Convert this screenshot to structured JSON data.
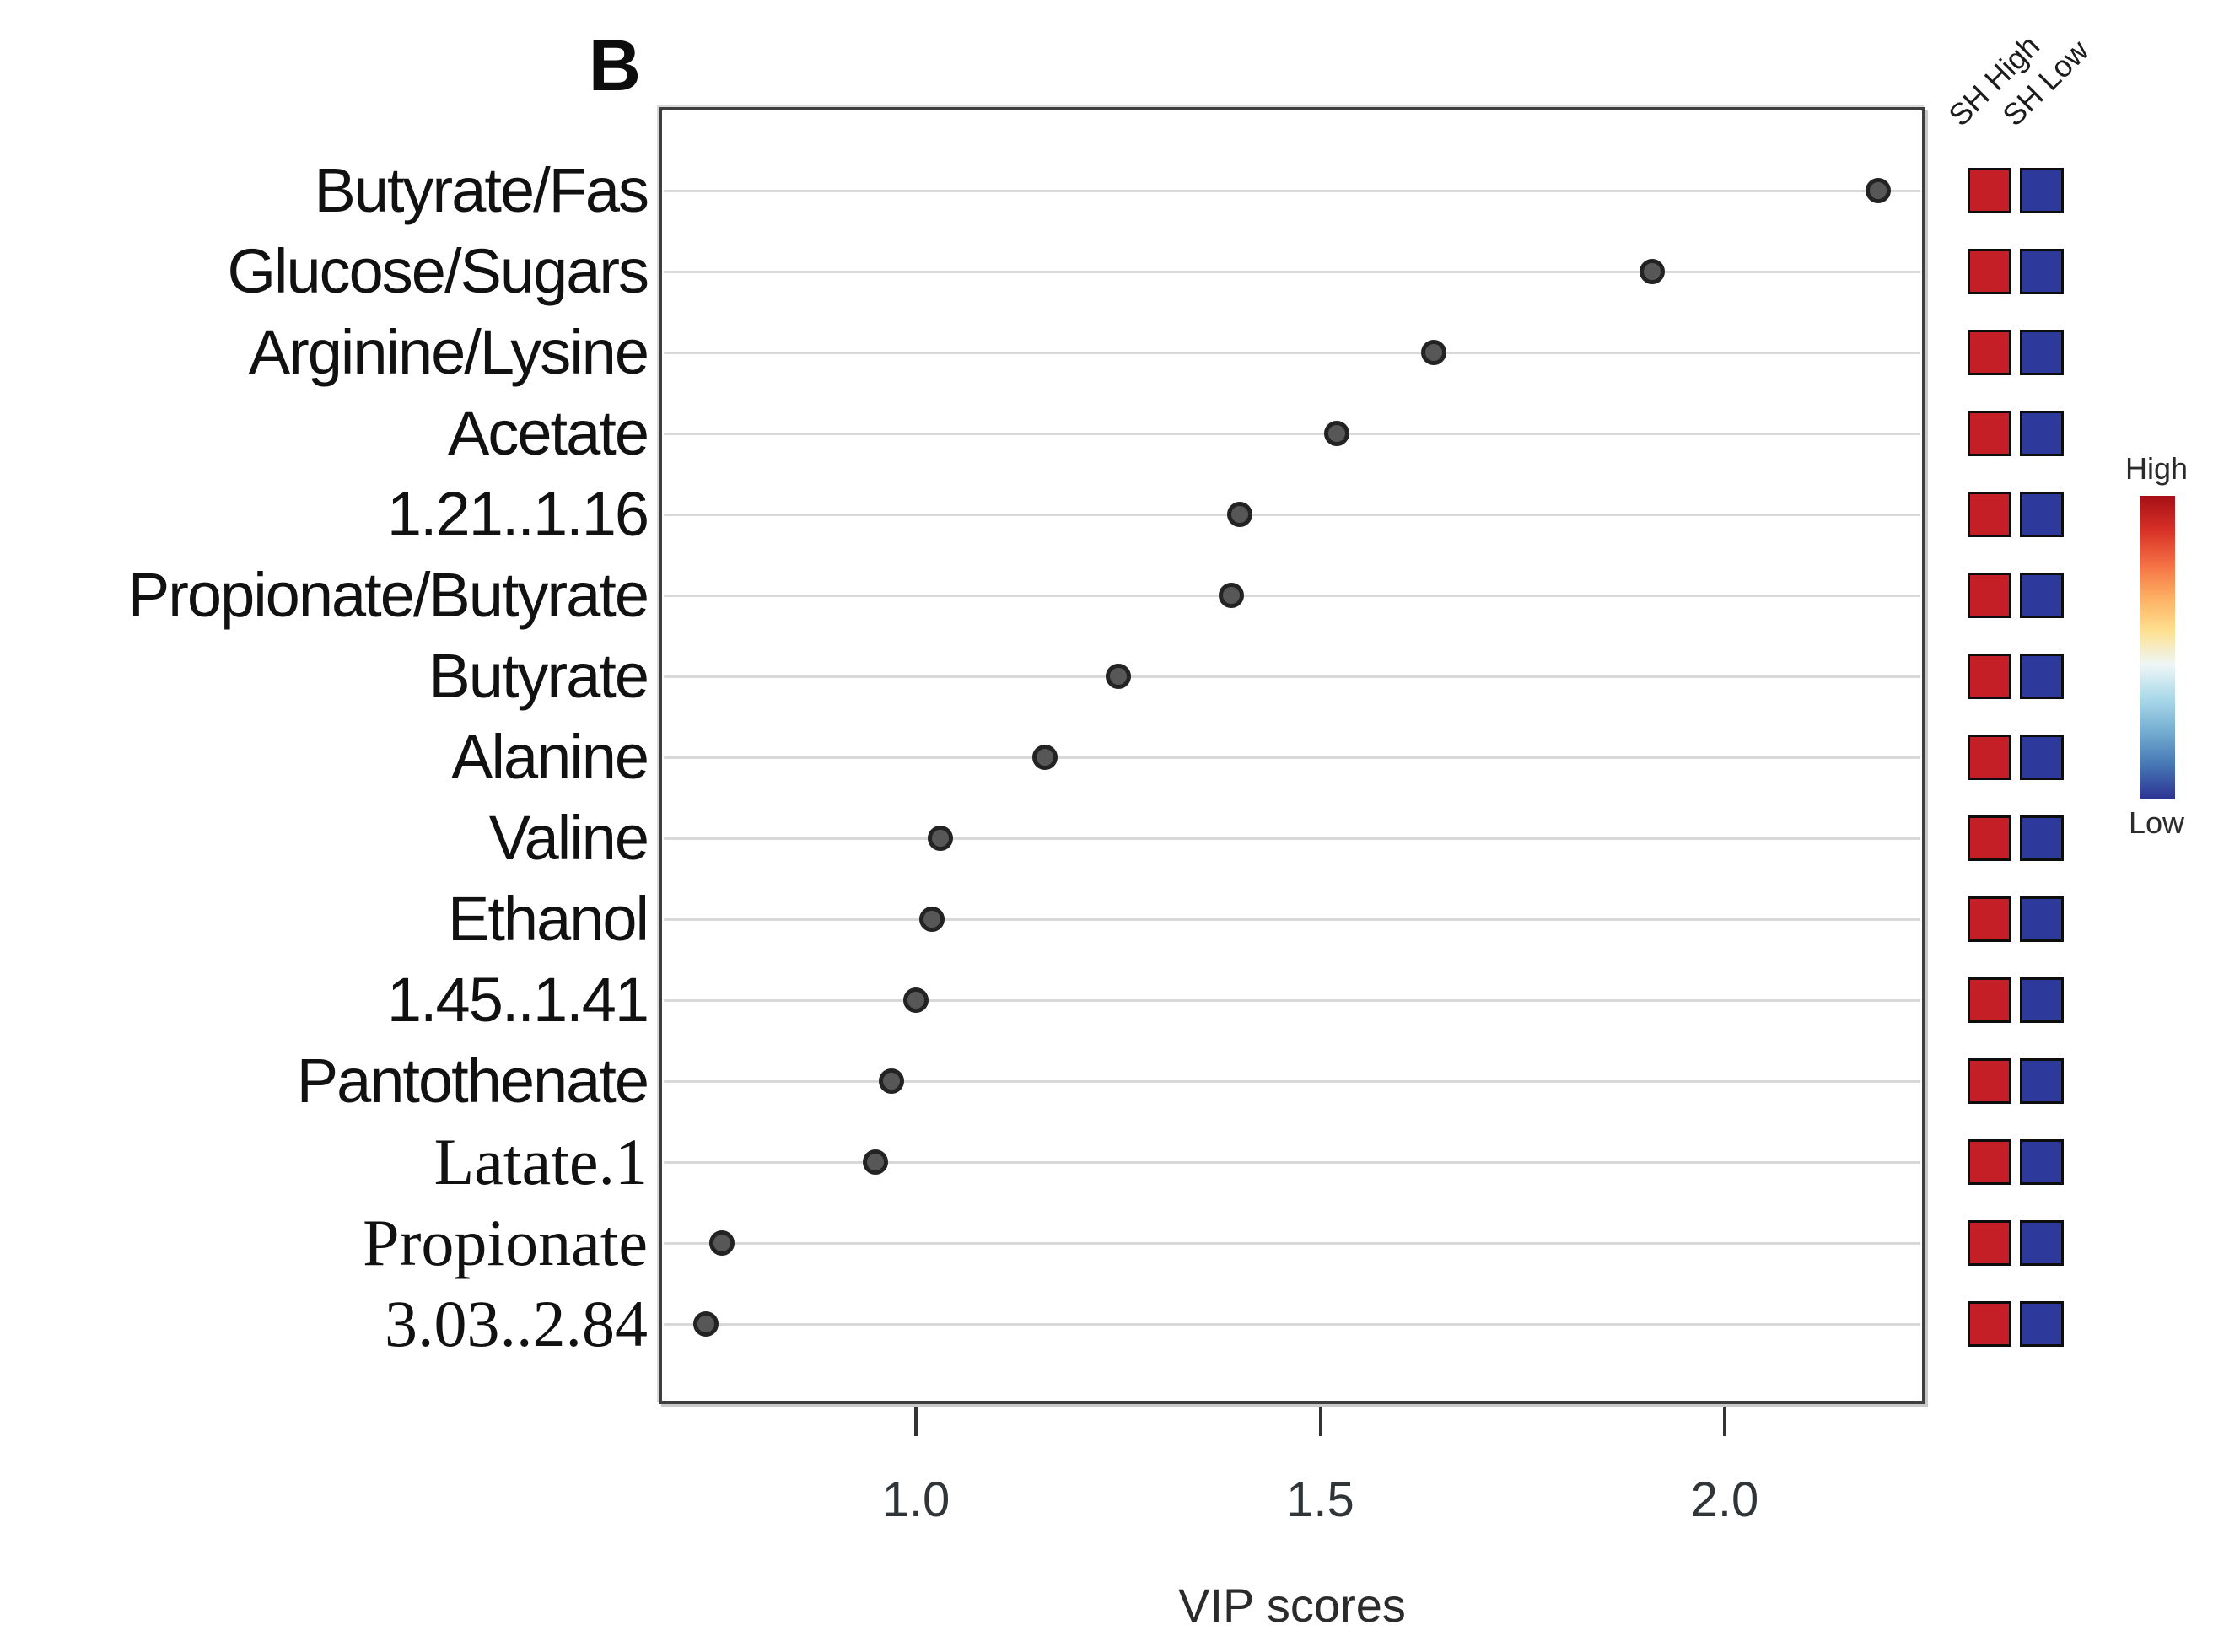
{
  "chart_data": {
    "type": "scatter",
    "panel_label": "B",
    "xlabel": "VIP scores",
    "xlim": [
      0.68,
      2.25
    ],
    "grid": true,
    "x_ticks": [
      {
        "label": "1.0",
        "value": 1.0
      },
      {
        "label": "1.5",
        "value": 1.5
      },
      {
        "label": "2.0",
        "value": 2.0
      }
    ],
    "categories": [
      "Butyrate/Fas",
      "Glucose/Sugars",
      "Arginine/Lysine",
      "Acetate",
      "1.21..1.16",
      "Propionate/Butyrate",
      "Butyrate",
      "Alanine",
      "Valine",
      "Ethanol",
      "1.45..1.41",
      "Pantothenate",
      "Latate.1",
      "Propionate",
      "3.03..2.84"
    ],
    "rows": [
      {
        "label": "Butyrate/Fas",
        "vip": 2.19,
        "serif": false,
        "sh_high": "high",
        "sh_low": "low"
      },
      {
        "label": "Glucose/Sugars",
        "vip": 1.91,
        "serif": false,
        "sh_high": "high",
        "sh_low": "low"
      },
      {
        "label": "Arginine/Lysine",
        "vip": 1.64,
        "serif": false,
        "sh_high": "high",
        "sh_low": "low"
      },
      {
        "label": "Acetate",
        "vip": 1.52,
        "serif": false,
        "sh_high": "high",
        "sh_low": "low"
      },
      {
        "label": "1.21..1.16",
        "vip": 1.4,
        "serif": false,
        "sh_high": "high",
        "sh_low": "low"
      },
      {
        "label": "Propionate/Butyrate",
        "vip": 1.39,
        "serif": false,
        "sh_high": "high",
        "sh_low": "low"
      },
      {
        "label": "Butyrate",
        "vip": 1.25,
        "serif": false,
        "sh_high": "high",
        "sh_low": "low"
      },
      {
        "label": "Alanine",
        "vip": 1.16,
        "serif": false,
        "sh_high": "high",
        "sh_low": "low"
      },
      {
        "label": "Valine",
        "vip": 1.03,
        "serif": false,
        "sh_high": "high",
        "sh_low": "low"
      },
      {
        "label": "Ethanol",
        "vip": 1.02,
        "serif": false,
        "sh_high": "high",
        "sh_low": "low"
      },
      {
        "label": "1.45..1.41",
        "vip": 1.0,
        "serif": false,
        "sh_high": "high",
        "sh_low": "low"
      },
      {
        "label": "Pantothenate",
        "vip": 0.97,
        "serif": false,
        "sh_high": "high",
        "sh_low": "low"
      },
      {
        "label": "Latate.1",
        "vip": 0.95,
        "serif": true,
        "sh_high": "high",
        "sh_low": "low"
      },
      {
        "label": "Propionate",
        "vip": 0.76,
        "serif": true,
        "sh_high": "high",
        "sh_low": "low"
      },
      {
        "label": "3.03..2.84",
        "vip": 0.74,
        "serif": true,
        "sh_high": "high",
        "sh_low": "low"
      }
    ],
    "heatmap": {
      "columns": [
        "SH High",
        "SH Low"
      ],
      "palette": {
        "high": "#c41e26",
        "low": "#2e3a9b"
      }
    },
    "colorbar": {
      "high_label": "High",
      "low_label": "Low",
      "gradient": [
        "#a50f15",
        "#d73027",
        "#f46d43",
        "#fdae61",
        "#fee090",
        "#eef6f6",
        "#abd9e9",
        "#74add1",
        "#4575b4",
        "#2c3292"
      ]
    },
    "colors": {
      "dot_fill": "#575757",
      "dot_ring": "#232323",
      "gridline": "#d8d8d8",
      "frame": "#3e3e3e"
    }
  }
}
